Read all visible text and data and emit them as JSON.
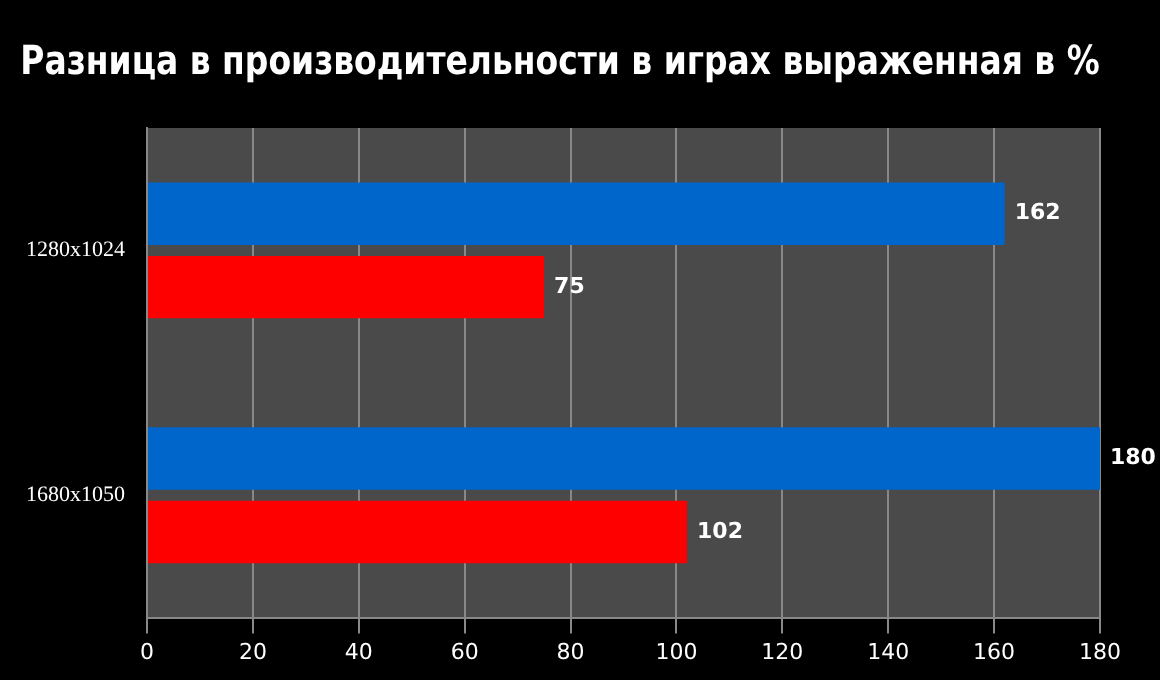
{
  "chart_data": {
    "type": "bar",
    "orientation": "horizontal",
    "title": "Разница в производительности в играх выраженная в %",
    "categories": [
      "1280x1024",
      "1680x1050"
    ],
    "series": [
      {
        "color": "#0066cc",
        "values": [
          162,
          180
        ]
      },
      {
        "color": "#ff0000",
        "values": [
          75,
          102
        ]
      }
    ],
    "xlim": [
      0,
      180
    ],
    "xticks": [
      0,
      20,
      40,
      60,
      80,
      100,
      120,
      140,
      160,
      180
    ],
    "grid": "x",
    "data_labels": true
  }
}
